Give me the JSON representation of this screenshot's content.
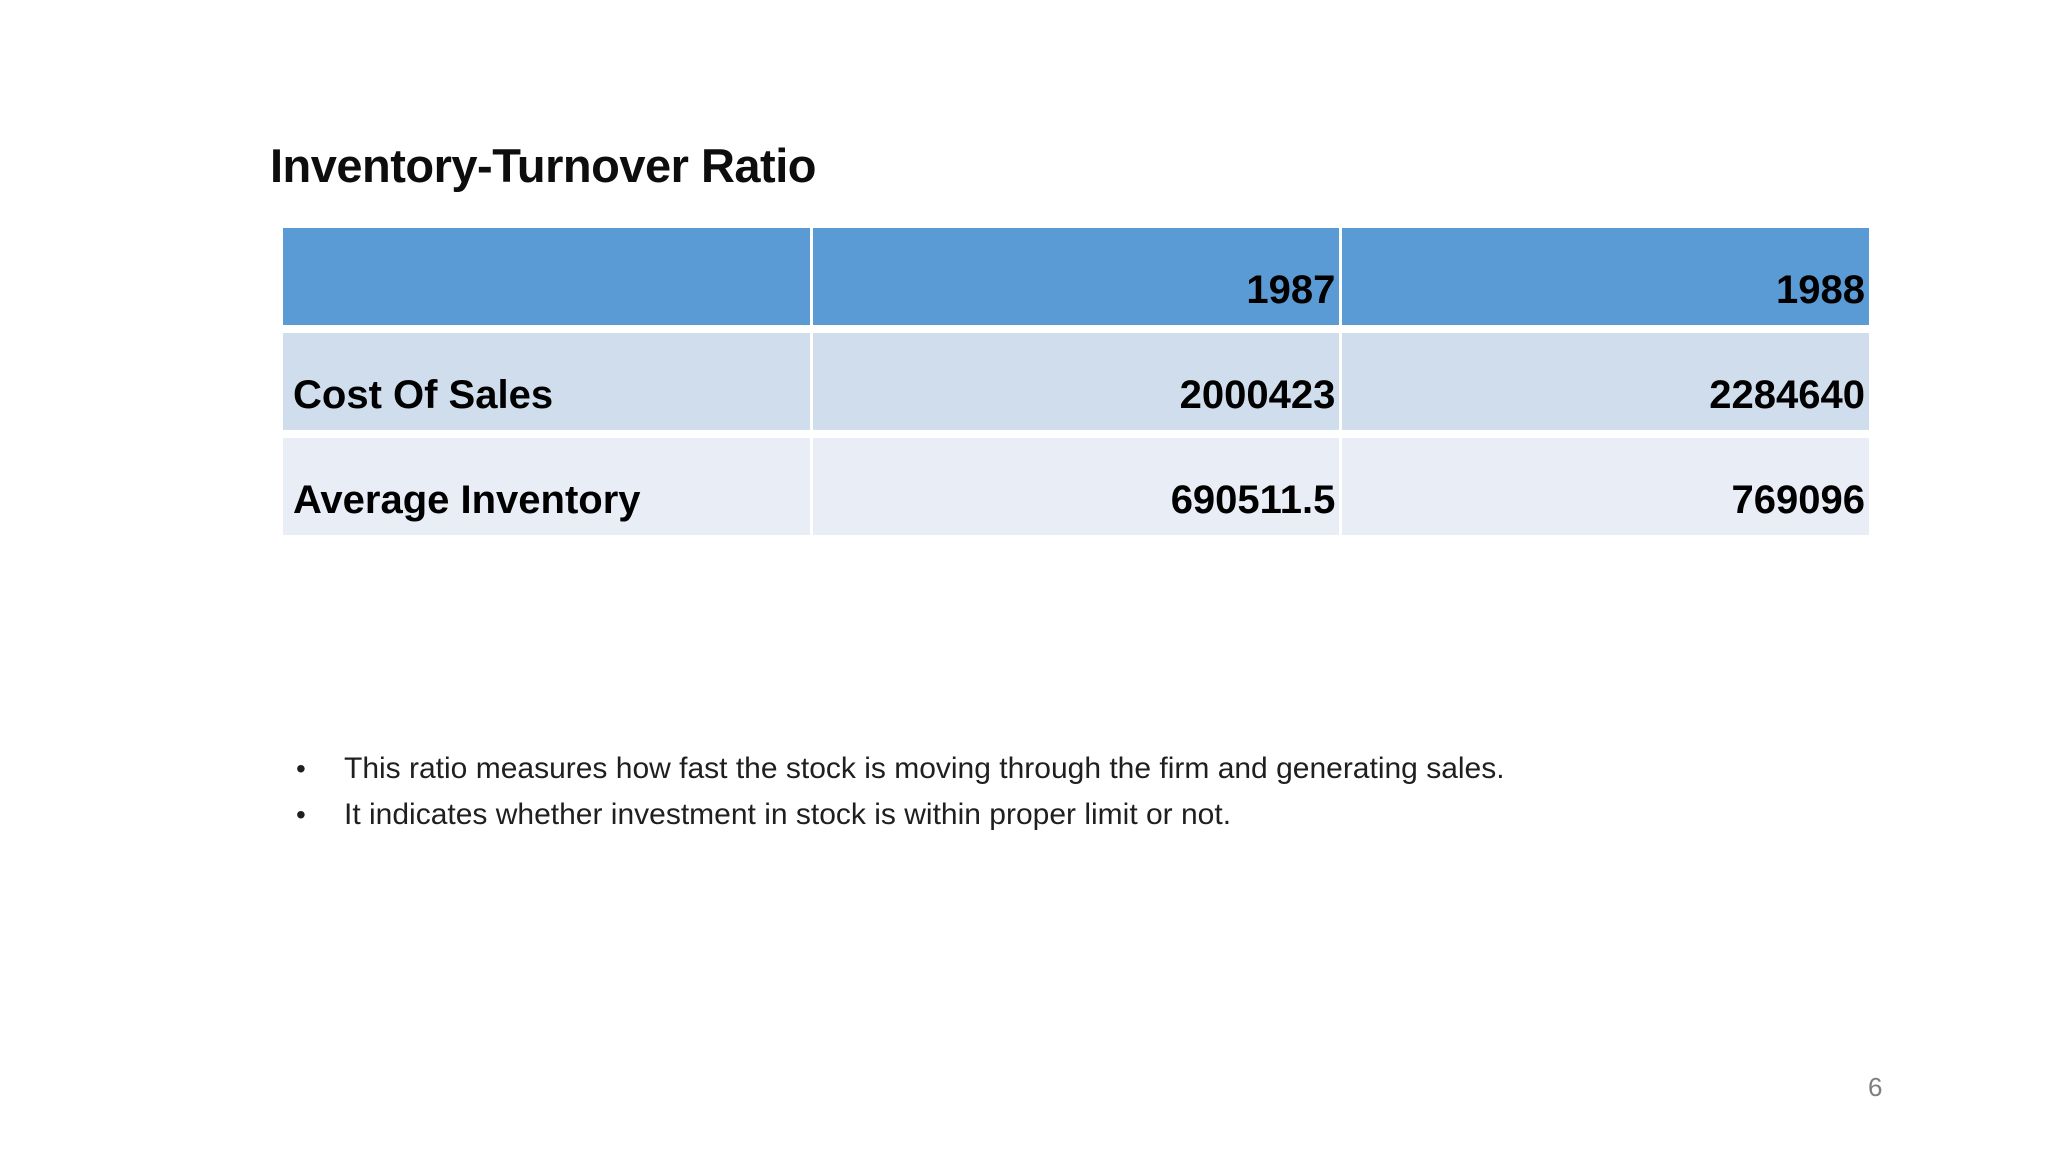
{
  "slide": {
    "title": "Inventory-Turnover Ratio",
    "page_number": "6"
  },
  "table": {
    "columns": [
      "",
      "1987",
      "1988"
    ],
    "rows": [
      {
        "label": "Cost Of Sales",
        "values": [
          "2000423",
          "2284640"
        ]
      },
      {
        "label": "Average Inventory",
        "values": [
          "690511.5",
          "769096"
        ]
      }
    ]
  },
  "bullets": [
    "This ratio measures how fast the stock is moving through the firm and generating sales.",
    "It indicates whether investment in stock is within proper limit or not."
  ],
  "icons": {
    "bullet": "•"
  },
  "colors": {
    "header_bg": "#5B9BD5",
    "row_odd_bg": "#CFDDEC",
    "row_even_bg": "#E9EDF6",
    "table_text": "#000000",
    "body_text": "#1F1F1F",
    "page_number_text": "#7F7F7F",
    "background": "#FFFFFF"
  }
}
